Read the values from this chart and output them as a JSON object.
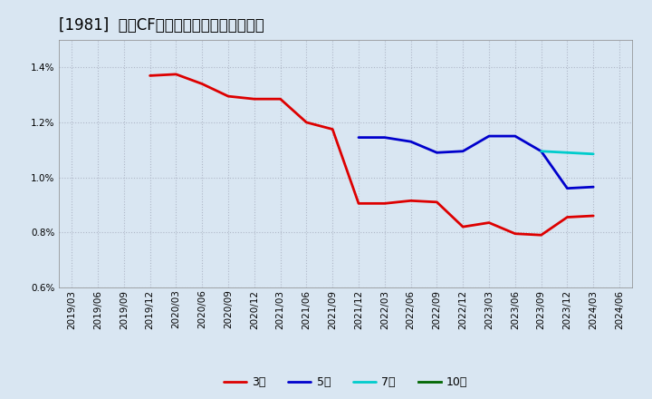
{
  "title": "[1981]  営業CFマージンの標準偏差の推移",
  "background_color": "#d9e6f2",
  "plot_bg_color": "#d9e6f2",
  "ylabel": "",
  "ylim": [
    0.006,
    0.015
  ],
  "yticks": [
    0.006,
    0.008,
    0.01,
    0.012,
    0.014
  ],
  "grid_color": "#b0b8c8",
  "series": {
    "3年": {
      "color": "#dd0000",
      "x": [
        "2019/12",
        "2020/03",
        "2020/06",
        "2020/09",
        "2020/12",
        "2021/03",
        "2021/06",
        "2021/09",
        "2021/12",
        "2022/03",
        "2022/06",
        "2022/09",
        "2022/12",
        "2023/03",
        "2023/06",
        "2023/09",
        "2023/12",
        "2024/03"
      ],
      "y": [
        0.0137,
        0.01375,
        0.0134,
        0.01295,
        0.01285,
        0.01285,
        0.012,
        0.01175,
        0.00905,
        0.00905,
        0.00915,
        0.0091,
        0.0082,
        0.00835,
        0.00795,
        0.0079,
        0.00855,
        0.0086
      ]
    },
    "5年": {
      "color": "#0000cc",
      "x": [
        "2021/12",
        "2022/03",
        "2022/06",
        "2022/09",
        "2022/12",
        "2023/03",
        "2023/06",
        "2023/09",
        "2023/12",
        "2024/03"
      ],
      "y": [
        0.01145,
        0.01145,
        0.0113,
        0.0109,
        0.01095,
        0.0115,
        0.0115,
        0.01095,
        0.0096,
        0.00965
      ]
    },
    "7年": {
      "color": "#00cccc",
      "x": [
        "2023/09",
        "2023/12",
        "2024/03"
      ],
      "y": [
        0.01095,
        0.0109,
        0.01085
      ]
    },
    "10年": {
      "color": "#006600",
      "x": [],
      "y": []
    }
  },
  "xticks": [
    "2019/03",
    "2019/06",
    "2019/09",
    "2019/12",
    "2020/03",
    "2020/06",
    "2020/09",
    "2020/12",
    "2021/03",
    "2021/06",
    "2021/09",
    "2021/12",
    "2022/03",
    "2022/06",
    "2022/09",
    "2022/12",
    "2023/03",
    "2023/06",
    "2023/09",
    "2023/12",
    "2024/03",
    "2024/06"
  ],
  "title_fontsize": 12,
  "tick_fontsize": 7.5,
  "legend_fontsize": 9
}
